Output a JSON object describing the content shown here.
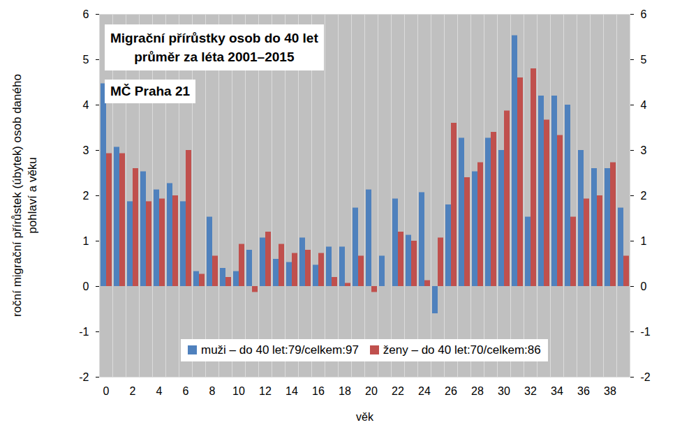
{
  "chart_data": {
    "type": "bar",
    "title": "Migrační přírůstky osob do 40 let",
    "subtitle": "průměr za léta 2001–2015",
    "annotation": "MČ Praha 21",
    "x_label": "věk",
    "y_label": "roční migrační přírůstek (úbytek) osob daného pohlaví a věku",
    "categories": [
      0,
      null,
      2,
      null,
      4,
      null,
      6,
      null,
      8,
      null,
      10,
      null,
      12,
      null,
      14,
      null,
      16,
      null,
      18,
      null,
      20,
      null,
      22,
      null,
      24,
      null,
      26,
      null,
      28,
      null,
      30,
      null,
      32,
      null,
      34,
      null,
      36,
      null,
      38,
      null
    ],
    "series": [
      {
        "name": "muži – do 40 let:79/celkem:97",
        "color": "#4f81bd",
        "values": [
          4.47,
          3.07,
          1.87,
          2.53,
          2.13,
          2.27,
          1.87,
          0.33,
          1.53,
          0.4,
          0.33,
          0.8,
          1.07,
          0.6,
          0.53,
          1.07,
          0.47,
          0.87,
          0.87,
          1.73,
          2.13,
          0.67,
          1.93,
          1.13,
          2.07,
          -0.6,
          1.8,
          3.27,
          2.53,
          3.27,
          3.0,
          5.53,
          1.53,
          4.2,
          4.2,
          4.0,
          3.0,
          2.6,
          2.6,
          1.73
        ]
      },
      {
        "name": "ženy – do 40 let:70/celkem:86",
        "color": "#c0504d",
        "values": [
          2.93,
          2.93,
          2.6,
          1.87,
          1.93,
          2.0,
          3.0,
          0.27,
          0.67,
          0.2,
          0.93,
          -0.13,
          1.2,
          0.93,
          0.73,
          0.8,
          0.73,
          0.2,
          0.07,
          0.67,
          -0.13,
          0,
          1.2,
          1.0,
          0.13,
          1.07,
          3.6,
          2.4,
          2.73,
          3.4,
          3.87,
          4.6,
          4.8,
          3.67,
          3.33,
          1.53,
          1.93,
          2.0,
          2.73,
          0.67
        ]
      }
    ],
    "ylim": [
      -2,
      6
    ],
    "yticks": [
      -2,
      -1,
      0,
      1,
      2,
      3,
      4,
      5,
      6
    ],
    "y2lim": [
      -2,
      6
    ],
    "y2ticks": [
      -2,
      -1,
      0,
      1,
      2,
      3,
      4,
      5,
      6
    ],
    "legend": "bottom"
  }
}
